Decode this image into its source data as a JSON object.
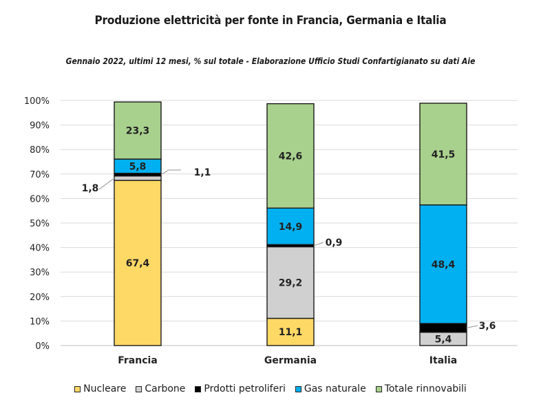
{
  "chart_data": {
    "type": "bar",
    "stacked": true,
    "title": "Produzione elettricità per fonte in Francia, Germania e Italia",
    "subtitle": "Gennaio 2022, ultimi 12 mesi, % sul totale - Elaborazione Ufficio Studi Confartigianato su dati Aie",
    "categories": [
      "Francia",
      "Germania",
      "Italia"
    ],
    "ylim": [
      0,
      100
    ],
    "yticks": [
      "0%",
      "10%",
      "20%",
      "30%",
      "40%",
      "50%",
      "60%",
      "70%",
      "80%",
      "90%",
      "100%"
    ],
    "grid": true,
    "legend_position": "bottom",
    "series": [
      {
        "name": "Nucleare",
        "color": "#FFD966",
        "values": [
          67.4,
          11.1,
          0
        ],
        "labels": [
          "67,4",
          "11,1",
          ""
        ]
      },
      {
        "name": "Carbone",
        "color": "#D0D0D0",
        "values": [
          1.8,
          29.2,
          5.4
        ],
        "labels": [
          "1,8",
          "29,2",
          "5,4"
        ]
      },
      {
        "name": "Prdotti petroliferi",
        "color": "#000000",
        "values": [
          1.1,
          0.9,
          3.6
        ],
        "labels": [
          "1,1",
          "0,9",
          "3,6"
        ]
      },
      {
        "name": "Gas naturale",
        "color": "#00B0F0",
        "values": [
          5.8,
          14.9,
          48.4
        ],
        "labels": [
          "5,8",
          "14,9",
          "48,4"
        ]
      },
      {
        "name": "Totale rinnovabili",
        "color": "#A9D18E",
        "values": [
          23.3,
          42.6,
          41.5
        ],
        "labels": [
          "23,3",
          "42,6",
          "41,5"
        ]
      }
    ]
  }
}
